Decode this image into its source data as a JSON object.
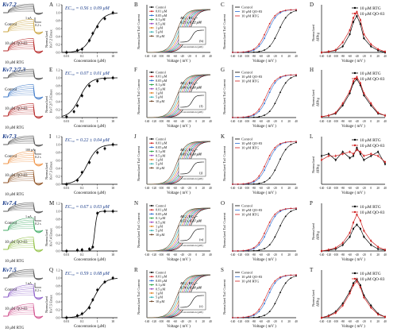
{
  "rows": [
    {
      "channel": "Kv7.2",
      "traces": {
        "labels": [
          "Control",
          "10 μM QO-83",
          "10 μM RTG"
        ],
        "colors": [
          "#555555",
          "#c9a23a",
          "#b42020"
        ],
        "scale_current": "1 nA",
        "scale_time": "0.2 s"
      },
      "panels": {
        "A": {
          "letter": "A",
          "ec50": "EC₅₀ = 0.56 ± 0.09 μM",
          "ylabel": "Normalized\nKv7.2 Emax",
          "xlabel": "Concentration (μM)",
          "yticks": [
            "0.0",
            "0.2",
            "0.4",
            "0.6",
            "0.8",
            "1.0",
            "1.2"
          ],
          "xticks": [
            "0.01",
            "0.1",
            "1",
            "10"
          ],
          "chart_data": {
            "type": "scatter",
            "x": [
              0.01,
              0.05,
              0.1,
              0.3,
              0.5,
              1,
              3,
              10
            ],
            "y": [
              0.0,
              0.05,
              0.08,
              0.3,
              0.48,
              0.65,
              0.85,
              1.0
            ],
            "ec50": 0.56
          }
        },
        "B": {
          "letter": "B",
          "inset_title": "AV₁/₂ EC₅₀=\n0.25 ± 0.22 μM",
          "inset_letter": "(b)"
        },
        "C": {
          "letter": "C",
          "legend": [
            "Control",
            "10 μM QO-83",
            "10 μM RTG"
          ]
        },
        "D": {
          "letter": "D",
          "legend": [
            "10 μM RTG",
            "10 μM QO-83"
          ],
          "ylabel": "Normalized\nΔIRtg",
          "chart_data": {
            "type": "line",
            "x": [
              -140,
              -120,
              -100,
              -80,
              -60,
              -50,
              -40,
              -30,
              -20,
              0,
              20,
              40
            ],
            "series": [
              {
                "name": "10 μM RTG",
                "values": [
                  0,
                  0.02,
                  0.05,
                  0.15,
                  0.45,
                  0.75,
                  0.9,
                  0.7,
                  0.35,
                  0.15,
                  0.05,
                  0.0
                ]
              },
              {
                "name": "10 μM QO-83",
                "values": [
                  0,
                  0.02,
                  0.06,
                  0.25,
                  0.55,
                  0.85,
                  1.0,
                  0.8,
                  0.45,
                  0.2,
                  0.08,
                  0.02
                ]
              }
            ]
          }
        }
      }
    },
    {
      "channel": "Kv7.2/7.3",
      "traces": {
        "labels": [
          "Control",
          "10 μM QO-83",
          "10 μM RTG"
        ],
        "colors": [
          "#555555",
          "#3c78c8",
          "#b42020"
        ],
        "scale_current": "",
        "scale_time": ""
      },
      "panels": {
        "A": {
          "letter": "E",
          "ec50": "EC₅₀ = 0.07 ± 0.01 μM",
          "ylabel": "Normalized\nKv7.2/7.3 Emax",
          "xlabel": "Concentration (μM)",
          "yticks": [
            "0.0",
            "0.2",
            "0.4",
            "0.6",
            "0.8",
            "1.0",
            "1.2"
          ],
          "xticks": [
            "0.01",
            "0.1",
            "1",
            "10"
          ],
          "chart_data": {
            "type": "scatter",
            "x": [
              0.01,
              0.03,
              0.05,
              0.1,
              0.3,
              1,
              3,
              10
            ],
            "y": [
              0.02,
              0.15,
              0.3,
              0.55,
              0.8,
              0.92,
              0.98,
              1.0
            ],
            "ec50": 0.07
          }
        },
        "B": {
          "letter": "F",
          "inset_title": "AV₁/₂ EC₅₀=\n1.00 ± 0.10 μM",
          "inset_letter": "(f)"
        },
        "C": {
          "letter": "G",
          "legend": [
            "Control",
            "10 μM QO-83",
            "10 μM RTG"
          ]
        },
        "D": {
          "letter": "H",
          "legend": [
            "10 μM RTG",
            "10 μM QO-83"
          ],
          "ylabel": "Normalized\nΔIRtg",
          "chart_data": {
            "type": "line",
            "x": [
              -140,
              -120,
              -100,
              -80,
              -60,
              -50,
              -40,
              -30,
              -20,
              0,
              20,
              40
            ],
            "series": [
              {
                "name": "10 μM RTG",
                "values": [
                  0.02,
                  0.05,
                  0.1,
                  0.3,
                  0.6,
                  0.85,
                  0.95,
                  0.8,
                  0.55,
                  0.3,
                  0.1,
                  0.05
                ]
              },
              {
                "name": "10 μM QO-83",
                "values": [
                  0.02,
                  0.05,
                  0.12,
                  0.35,
                  0.65,
                  0.9,
                  1.0,
                  0.85,
                  0.6,
                  0.35,
                  0.12,
                  0.05
                ]
              }
            ]
          }
        }
      }
    },
    {
      "channel": "Kv7.3",
      "traces": {
        "labels": [
          "Control",
          "10 μM QO-83",
          "10 μM RTG"
        ],
        "colors": [
          "#555555",
          "#f09040",
          "#8a4a1a"
        ],
        "scale_current": "100 pA",
        "scale_time": "0.2 s"
      },
      "panels": {
        "A": {
          "letter": "I",
          "ec50": "EC₅₀ = 0.22 ± 0.04 μM",
          "ylabel": "Normalized\nKv7.3 Emax",
          "xlabel": "Concentration (μM)",
          "yticks": [
            "0.0",
            "0.2",
            "0.4",
            "0.6",
            "0.8",
            "1.0",
            "1.2"
          ],
          "xticks": [
            "0.01",
            "0.1",
            "1",
            "10"
          ],
          "chart_data": {
            "type": "scatter",
            "x": [
              0.01,
              0.05,
              0.1,
              0.3,
              1,
              3,
              10
            ],
            "y": [
              0.0,
              0.1,
              0.3,
              0.55,
              0.8,
              0.9,
              1.0
            ],
            "ec50": 0.22
          }
        },
        "B": {
          "letter": "J",
          "inset_title": "AV₁/₂ EC₅₀=\n0.82 ± 0.10 μM",
          "inset_letter": "(j)"
        },
        "C": {
          "letter": "K",
          "legend": [
            "Control",
            "10 μM QO-83",
            "10 μM RTG"
          ]
        },
        "D": {
          "letter": "L",
          "legend": [
            "10 μM RTG",
            "10 μM QO-83"
          ],
          "ylabel": "Normalized\nΔIRtg",
          "chart_data": {
            "type": "line",
            "x": [
              -140,
              -120,
              -100,
              -80,
              -60,
              -50,
              -40,
              -30,
              -20,
              0,
              20,
              40
            ],
            "series": [
              {
                "name": "10 μM RTG",
                "values": [
                  0.7,
                  0.75,
                  0.6,
                  0.8,
                  0.65,
                  0.7,
                  0.9,
                  0.75,
                  0.6,
                  0.7,
                  0.8,
                  0.5
                ]
              },
              {
                "name": "10 μM QO-83",
                "values": [
                  0.6,
                  0.7,
                  0.7,
                  0.75,
                  0.8,
                  0.75,
                  0.85,
                  0.8,
                  0.7,
                  0.75,
                  0.7,
                  0.55
                ]
              }
            ]
          }
        }
      }
    },
    {
      "channel": "Kv7.4",
      "traces": {
        "labels": [
          "Control",
          "10 μM QO-83",
          "10 μM RTG"
        ],
        "colors": [
          "#555555",
          "#3aa860",
          "#8fbf40"
        ],
        "scale_current": "1 nA",
        "scale_time": "0.2 s"
      },
      "panels": {
        "A": {
          "letter": "M",
          "ec50": "EC₅₀ = 0.67 ± 0.03 μM",
          "ylabel": "Normalized\nKv7.4 Emax",
          "xlabel": "Concentration (μM)",
          "yticks": [
            "0.0",
            "0.2",
            "0.4",
            "0.6",
            "0.8",
            "1.0",
            "1.2"
          ],
          "xticks": [
            "0.01",
            "0.1",
            "1",
            "10"
          ],
          "chart_data": {
            "type": "scatter",
            "x": [
              0.01,
              0.05,
              0.1,
              0.3,
              0.5,
              1,
              3,
              10
            ],
            "y": [
              0.0,
              0.02,
              0.03,
              0.05,
              0.1,
              0.95,
              1.0,
              1.0
            ],
            "ec50": 0.67
          }
        },
        "B": {
          "letter": "N",
          "inset_title": "AV₁/₂ EC₅₀=\n0.52 ± 0.37 μM",
          "inset_letter": "(n)"
        },
        "C": {
          "letter": "O",
          "legend": [
            "Control",
            "10 μM QO-83",
            "10 μM RTG"
          ]
        },
        "D": {
          "letter": "P",
          "legend": [
            "10 μM RTG",
            "10 μM QO-83"
          ],
          "ylabel": "Normalized\nΔIRtg",
          "chart_data": {
            "type": "line",
            "x": [
              -140,
              -120,
              -100,
              -80,
              -60,
              -50,
              -40,
              -30,
              -20,
              0,
              20,
              40
            ],
            "series": [
              {
                "name": "10 μM RTG",
                "values": [
                  0.0,
                  0.02,
                  0.05,
                  0.15,
                  0.35,
                  0.55,
                  0.65,
                  0.55,
                  0.35,
                  0.15,
                  0.05,
                  0.02
                ]
              },
              {
                "name": "10 μM QO-83",
                "values": [
                  0.0,
                  0.03,
                  0.08,
                  0.2,
                  0.45,
                  0.7,
                  0.9,
                  0.75,
                  0.5,
                  0.25,
                  0.1,
                  0.03
                ]
              }
            ]
          }
        }
      }
    },
    {
      "channel": "Kv7.5",
      "traces": {
        "labels": [
          "Control",
          "10 μM QO-83",
          "10 μM RTG"
        ],
        "colors": [
          "#555555",
          "#8a5ac8",
          "#d04a8a"
        ],
        "scale_current": "1 nA",
        "scale_time": "0.2 s"
      },
      "panels": {
        "A": {
          "letter": "Q",
          "ec50": "EC₅₀ = 0.59 ± 0.08 μM",
          "ylabel": "Normalized\nKv7.5 Emax",
          "xlabel": "Concentration (μM)",
          "yticks": [
            "0.0",
            "0.2",
            "0.4",
            "0.6",
            "0.8",
            "1.0",
            "1.2"
          ],
          "xticks": [
            "0.01",
            "0.1",
            "1",
            "10"
          ],
          "chart_data": {
            "type": "scatter",
            "x": [
              0.01,
              0.05,
              0.1,
              0.3,
              0.5,
              1,
              3,
              10
            ],
            "y": [
              0.0,
              0.05,
              0.1,
              0.25,
              0.45,
              0.7,
              0.9,
              1.0
            ],
            "ec50": 0.59
          }
        },
        "B": {
          "letter": "R",
          "inset_title": "AV₁/₂ EC₅₀=\n0.74 ± 0.18 μM",
          "inset_letter": "(r)"
        },
        "C": {
          "letter": "S",
          "legend": [
            "Control",
            "10 μM QO-83",
            "10 μM RTG"
          ]
        },
        "D": {
          "letter": "T",
          "legend": [
            "10 μM RTG",
            "10 μM QO-83"
          ],
          "ylabel": "Normalized\nΔIRtg",
          "chart_data": {
            "type": "line",
            "x": [
              -140,
              -120,
              -100,
              -80,
              -60,
              -50,
              -40,
              -30,
              -20,
              0,
              20,
              40
            ],
            "series": [
              {
                "name": "10 μM RTG",
                "values": [
                  0.0,
                  0.05,
                  0.15,
                  0.35,
                  0.65,
                  0.85,
                  0.95,
                  0.8,
                  0.55,
                  0.3,
                  0.1,
                  0.02
                ]
              },
              {
                "name": "10 μM QO-83",
                "values": [
                  0.0,
                  0.04,
                  0.12,
                  0.3,
                  0.6,
                  0.8,
                  0.9,
                  0.75,
                  0.5,
                  0.25,
                  0.08,
                  0.02
                ]
              }
            ]
          }
        }
      }
    }
  ],
  "activation_legend": [
    "Control",
    "0.01 μM",
    "0.05 μM",
    "0.1 μM",
    "0.5 μM",
    "1 μM",
    "5 μM",
    "10 μM"
  ],
  "activation_legend_colors": [
    "#000000",
    "#d02020",
    "#2a6ad0",
    "#20a040",
    "#9a40c0",
    "#e08020",
    "#30b0b0",
    "#6a4020"
  ],
  "activation_ylabel": "Normalized Tail Current",
  "voltage_xlabel": "Voltage ( mV )",
  "voltage_ticks": [
    "-140",
    "-120",
    "-100",
    "-80",
    "-60",
    "-40",
    "-20",
    "0",
    "20",
    "40"
  ],
  "inset_xlabel": "Concentration (μM)"
}
